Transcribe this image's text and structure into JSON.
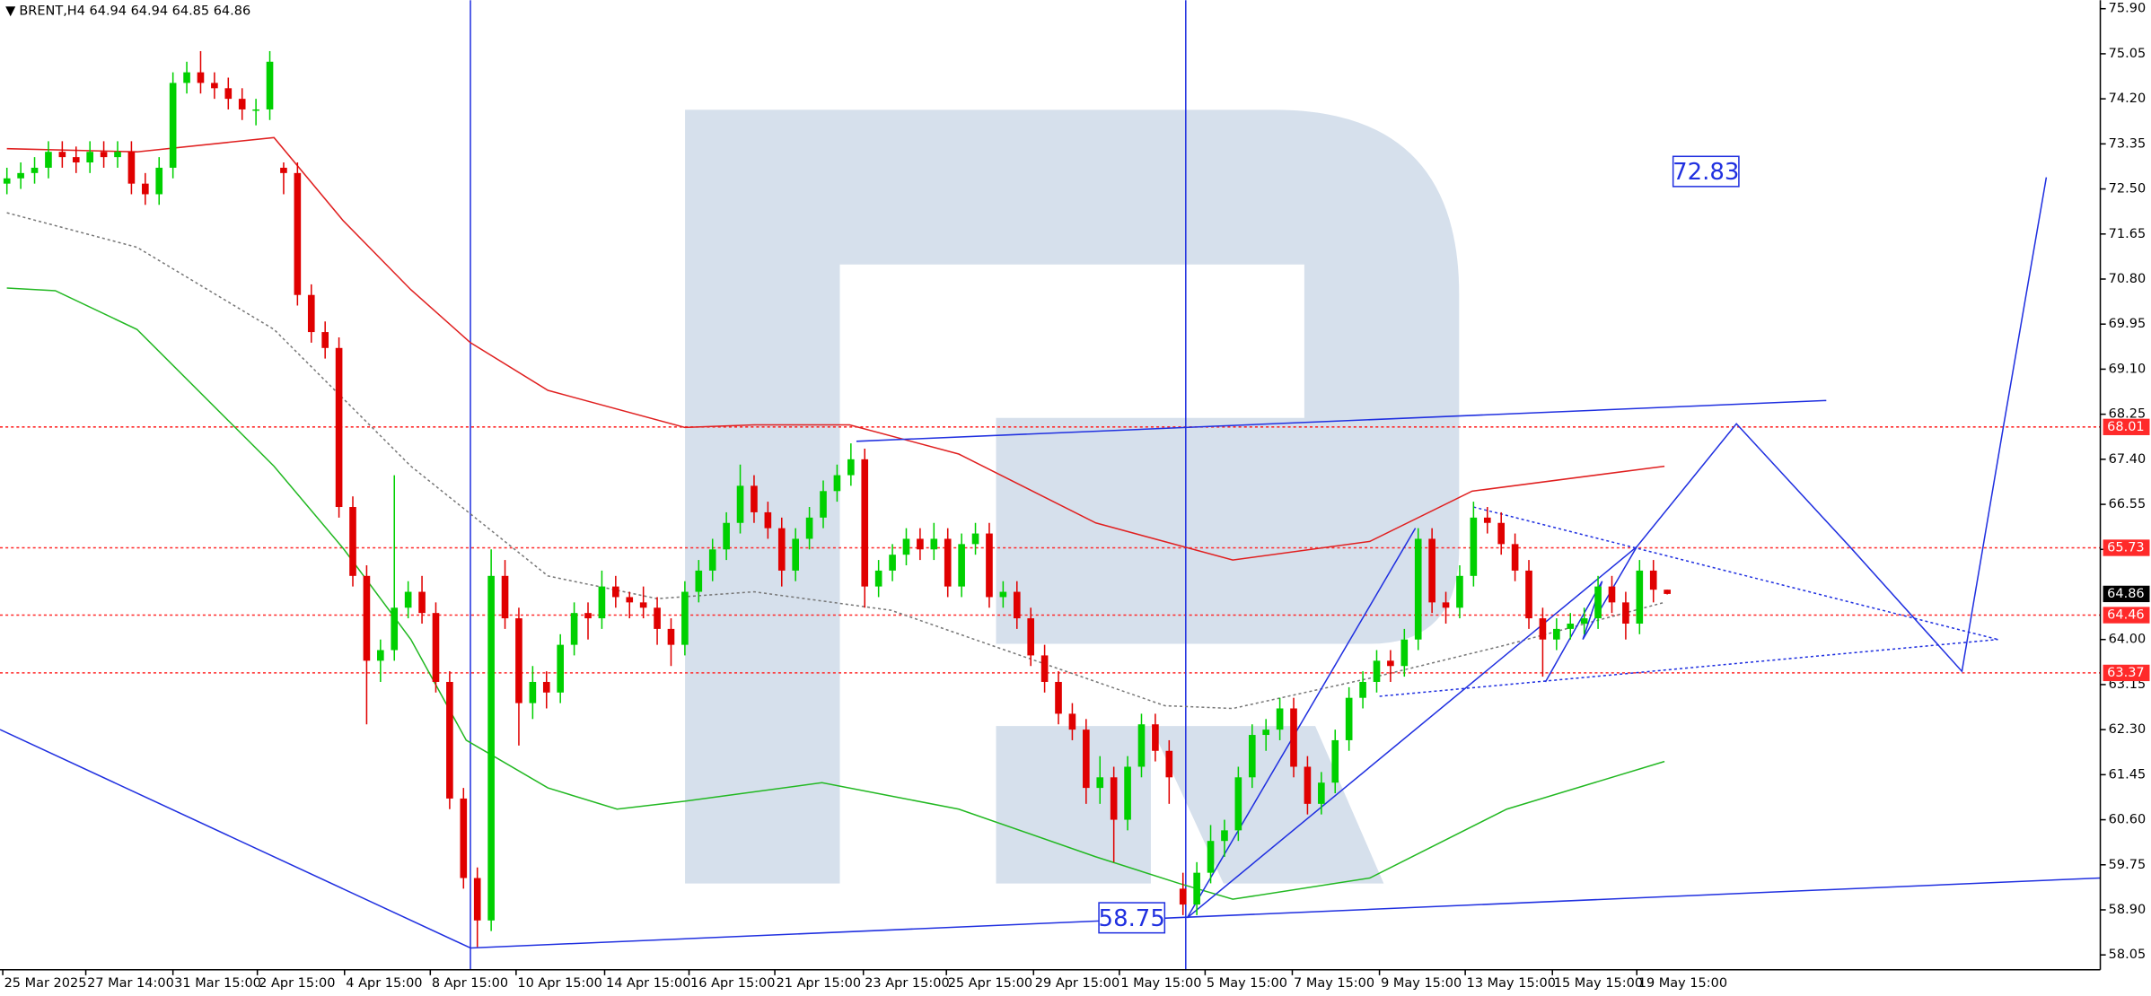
{
  "chart_data": {
    "type": "candlestick",
    "title": "BRENT,H4 64.94 64.94 64.85 64.86",
    "xlim": [
      -0.5,
      151.3
    ],
    "ylim": [
      57.77,
      76.06
    ],
    "xticks": [
      {
        "value": -0.3,
        "label": "25 Mar 2025"
      },
      {
        "value": 5.7,
        "label": "27 Mar 14:00"
      },
      {
        "value": 12,
        "label": "31 Mar 15:00"
      },
      {
        "value": 18.1,
        "label": "2 Apr 15:00"
      },
      {
        "value": 24.4,
        "label": "4 Apr 15:00"
      },
      {
        "value": 30.6,
        "label": "8 Apr 15:00"
      },
      {
        "value": 36.8,
        "label": "10 Apr 15:00"
      },
      {
        "value": 43.2,
        "label": "14 Apr 15:00"
      },
      {
        "value": 49.3,
        "label": "16 Apr 15:00"
      },
      {
        "value": 55.5,
        "label": "21 Apr 15:00"
      },
      {
        "value": 61.9,
        "label": "23 Apr 15:00"
      },
      {
        "value": 67.9,
        "label": "25 Apr 15:00"
      },
      {
        "value": 74.2,
        "label": "29 Apr 15:00"
      },
      {
        "value": 80.4,
        "label": "1 May 15:00"
      },
      {
        "value": 86.6,
        "label": "5 May 15:00"
      },
      {
        "value": 92.9,
        "label": "7 May 15:00"
      },
      {
        "value": 99.2,
        "label": "9 May 15:00"
      },
      {
        "value": 105.4,
        "label": "13 May 15:00"
      },
      {
        "value": 111.7,
        "label": "15 May 15:00"
      },
      {
        "value": 117.8,
        "label": "19 May 15:00"
      }
    ],
    "yticks": [
      {
        "value": 75.9,
        "label": "75.90"
      },
      75.05,
      {
        "value": 74.2,
        "label": "74.20"
      },
      73.35,
      {
        "value": 72.5,
        "label": "72.50"
      },
      71.65,
      {
        "value": 70.8,
        "label": "70.80"
      },
      69.95,
      {
        "value": 69.1,
        "label": "69.10"
      },
      68.25,
      {
        "value": 67.4,
        "label": "67.40"
      },
      66.55,
      {
        "value": 65.7,
        "label": "65.70"
      },
      {
        "value": 64,
        "label": "64.00"
      },
      63.15,
      {
        "value": 62.3,
        "label": "62.30"
      },
      61.45,
      {
        "value": 60.6,
        "label": "60.60"
      },
      59.75,
      {
        "value": 58.9,
        "label": "58.90"
      },
      58.05
    ],
    "up_color": "#00d000",
    "down_color": "#e00000",
    "open": [
      72.6,
      72.7,
      72.8,
      72.9,
      73.2,
      73.1,
      73.0,
      73.2,
      73.1,
      73.2,
      72.6,
      72.4,
      72.9,
      74.5,
      74.7,
      74.5,
      74.4,
      74.2,
      74.0,
      74.0,
      72.9,
      72.8,
      70.5,
      69.8,
      69.5,
      66.5,
      65.2,
      63.6,
      63.8,
      64.6,
      64.9,
      64.5,
      63.2,
      61.0,
      59.5,
      58.7,
      65.2,
      64.4,
      62.8,
      63.2,
      63.0,
      63.9,
      64.5,
      64.4,
      65.0,
      64.8,
      64.7,
      64.6,
      64.2,
      63.9,
      64.9,
      65.3,
      65.7,
      66.2,
      66.9,
      66.4,
      66.1,
      65.3,
      65.9,
      66.3,
      66.8,
      67.1,
      67.4,
      65.0,
      65.3,
      65.6,
      65.9,
      65.7,
      65.9,
      65.0,
      65.8,
      66.0,
      64.8,
      64.9,
      64.4,
      63.7,
      63.2,
      62.6,
      62.3,
      61.2,
      61.4,
      60.6,
      61.6,
      62.4,
      61.9,
      59.3,
      59.0,
      59.6,
      60.2,
      60.4,
      61.4,
      62.2,
      62.3,
      62.7,
      61.6,
      60.9,
      61.3,
      62.1,
      62.9,
      63.2,
      63.6,
      63.5,
      64.0,
      65.9,
      64.7,
      64.6,
      65.2,
      66.3,
      66.2,
      65.8,
      65.3,
      64.4,
      64.0,
      64.2,
      64.3,
      64.4,
      65.0,
      64.7,
      64.3,
      65.3,
      64.94
    ],
    "high": [
      72.9,
      73.0,
      73.1,
      73.4,
      73.4,
      73.3,
      73.4,
      73.4,
      73.4,
      73.4,
      72.8,
      73.1,
      74.7,
      74.9,
      75.1,
      74.7,
      74.6,
      74.4,
      74.2,
      75.1,
      73.0,
      73.0,
      70.7,
      70.0,
      69.7,
      66.7,
      65.4,
      64.0,
      67.1,
      65.1,
      65.2,
      64.7,
      63.4,
      61.2,
      59.7,
      65.7,
      65.5,
      64.6,
      63.5,
      63.4,
      64.1,
      64.7,
      64.7,
      65.3,
      65.2,
      64.9,
      65.0,
      64.8,
      64.4,
      65.1,
      65.5,
      65.9,
      66.4,
      67.3,
      67.1,
      66.6,
      66.3,
      66.1,
      66.5,
      67.0,
      67.3,
      67.7,
      67.6,
      65.5,
      65.8,
      66.1,
      66.1,
      66.2,
      66.1,
      66.0,
      66.2,
      66.2,
      65.1,
      65.1,
      64.6,
      63.9,
      63.4,
      62.8,
      62.5,
      61.8,
      61.6,
      61.8,
      62.6,
      62.6,
      62.1,
      59.6,
      59.8,
      60.5,
      60.6,
      61.6,
      62.4,
      62.5,
      62.9,
      62.9,
      61.8,
      61.5,
      62.3,
      63.1,
      63.4,
      63.8,
      63.8,
      64.2,
      66.1,
      66.1,
      64.9,
      65.4,
      66.6,
      66.5,
      66.4,
      66.0,
      65.5,
      64.6,
      64.4,
      64.5,
      64.6,
      65.2,
      65.2,
      64.9,
      65.5,
      65.5,
      64.94
    ],
    "low": [
      72.4,
      72.5,
      72.6,
      72.7,
      72.9,
      72.8,
      72.8,
      72.9,
      72.9,
      72.4,
      72.2,
      72.2,
      72.7,
      74.3,
      74.3,
      74.2,
      74.0,
      73.8,
      73.7,
      73.8,
      72.4,
      70.3,
      69.6,
      69.3,
      66.3,
      65.0,
      62.4,
      63.2,
      63.6,
      64.4,
      64.3,
      63.0,
      60.8,
      59.3,
      58.2,
      58.5,
      64.2,
      62.0,
      62.5,
      62.7,
      62.8,
      63.7,
      64.0,
      64.2,
      64.6,
      64.4,
      64.4,
      63.9,
      63.5,
      63.7,
      64.7,
      65.1,
      65.5,
      66.0,
      66.2,
      65.9,
      65.0,
      65.1,
      65.7,
      66.1,
      66.6,
      66.9,
      64.6,
      64.8,
      65.1,
      65.4,
      65.5,
      65.5,
      64.8,
      64.8,
      65.6,
      64.6,
      64.6,
      64.2,
      63.5,
      63.0,
      62.4,
      62.1,
      60.9,
      60.9,
      59.8,
      60.4,
      61.4,
      61.7,
      60.9,
      58.8,
      58.8,
      59.4,
      59.9,
      60.2,
      61.2,
      61.9,
      62.1,
      61.4,
      60.7,
      60.7,
      61.1,
      61.9,
      62.7,
      63.0,
      63.2,
      63.3,
      63.8,
      64.5,
      64.3,
      64.4,
      65.0,
      66.0,
      65.6,
      65.1,
      64.2,
      63.3,
      63.8,
      64.0,
      64.1,
      64.2,
      64.5,
      64.0,
      64.1,
      64.7,
      64.85
    ],
    "close": [
      72.7,
      72.8,
      72.9,
      73.2,
      73.1,
      73.0,
      73.2,
      73.1,
      73.2,
      72.6,
      72.4,
      72.9,
      74.5,
      74.7,
      74.5,
      74.4,
      74.2,
      74.0,
      74.0,
      74.9,
      72.8,
      70.5,
      69.8,
      69.5,
      66.5,
      65.2,
      63.6,
      63.8,
      64.6,
      64.9,
      64.5,
      63.2,
      61.0,
      59.5,
      58.7,
      65.2,
      64.4,
      62.8,
      63.2,
      63.0,
      63.9,
      64.5,
      64.4,
      65.0,
      64.8,
      64.7,
      64.6,
      64.2,
      63.9,
      64.9,
      65.3,
      65.7,
      66.2,
      66.9,
      66.4,
      66.1,
      65.3,
      65.9,
      66.3,
      66.8,
      67.1,
      67.4,
      65.0,
      65.3,
      65.6,
      65.9,
      65.7,
      65.9,
      65.0,
      65.8,
      66.0,
      64.8,
      64.9,
      64.4,
      63.7,
      63.2,
      62.6,
      62.3,
      61.2,
      61.4,
      60.6,
      61.6,
      62.4,
      61.9,
      61.4,
      59.0,
      59.6,
      60.2,
      60.4,
      61.4,
      62.2,
      62.3,
      62.7,
      61.6,
      60.9,
      61.3,
      62.1,
      62.9,
      63.2,
      63.6,
      63.5,
      64.0,
      65.9,
      64.7,
      64.6,
      65.2,
      66.3,
      66.2,
      65.8,
      65.3,
      64.4,
      64.0,
      64.2,
      64.3,
      64.4,
      65.0,
      64.7,
      64.3,
      65.3,
      64.94,
      64.86
    ],
    "lines": [
      {
        "color": "#e02020",
        "dash": false,
        "x": [
          0,
          9.4,
          19.3,
          24.3,
          29.2,
          33.5,
          39.1,
          49,
          54,
          60.9,
          68.8,
          78.7,
          88.6,
          98.5,
          105.9,
          119.8
        ],
        "values": [
          73.26,
          73.2,
          73.47,
          71.9,
          70.6,
          69.6,
          68.7,
          68.0,
          68.05,
          68.05,
          67.5,
          66.2,
          65.5,
          65.85,
          66.8,
          67.27
        ]
      },
      {
        "color": "#22b822",
        "dash": false,
        "x": [
          0,
          3.5,
          9.4,
          19.3,
          24.3,
          29.2,
          33.2,
          39.1,
          44.1,
          49,
          58.9,
          68.8,
          78.7,
          84.7,
          88.6,
          98.5,
          108.4,
          119.8
        ],
        "values": [
          70.63,
          70.58,
          69.85,
          67.27,
          65.72,
          64.0,
          62.1,
          61.2,
          60.8,
          60.95,
          61.3,
          60.8,
          59.9,
          59.4,
          59.1,
          59.5,
          60.8,
          61.7
        ]
      },
      {
        "color": "#777777",
        "dash": true,
        "x": [
          0,
          9.4,
          19.3,
          29.2,
          39.1,
          47,
          54,
          63.9,
          73.8,
          83.7,
          88.6,
          98.5,
          108.4,
          119.8
        ],
        "values": [
          72.05,
          71.4,
          69.85,
          67.27,
          65.2,
          64.77,
          64.9,
          64.55,
          63.65,
          62.75,
          62.7,
          63.27,
          63.9,
          64.7
        ]
      },
      {
        "color": "#2030e0",
        "dash": false,
        "x": [
          -0.5,
          33.5
        ],
        "values": [
          62.3,
          58.18
        ]
      },
      {
        "color": "#2030e0",
        "dash": false,
        "x": [
          33.5,
          151.3
        ],
        "values": [
          58.18,
          59.5
        ]
      },
      {
        "color": "#2030e0",
        "dash": false,
        "x": [
          61.4,
          131.5
        ],
        "values": [
          67.74,
          68.51
        ]
      },
      {
        "color": "#2030e0",
        "dash": false,
        "x": [
          85.3,
          101.8
        ],
        "values": [
          58.75,
          66.1
        ]
      },
      {
        "color": "#2030e0",
        "dash": false,
        "x": [
          85.3,
          117.8
        ],
        "values": [
          58.75,
          65.75
        ]
      },
      {
        "color": "#2030e0",
        "dash": false,
        "x": [
          111.2,
          115.3,
          113.9,
          117.8,
          125.0,
          133.2,
          141.3,
          144.3,
          147.4
        ],
        "values": [
          63.2,
          65.1,
          64.0,
          65.75,
          68.07,
          65.75,
          63.4,
          68.02,
          72.72
        ]
      },
      {
        "color": "#2030e0",
        "dash": true,
        "x": [
          106.0,
          143.9
        ],
        "values": [
          66.5,
          64.0
        ]
      },
      {
        "color": "#2030e0",
        "dash": true,
        "x": [
          99.2,
          143.9
        ],
        "values": [
          62.93,
          64.0
        ]
      }
    ],
    "vlines": [
      33.5,
      85.2
    ],
    "vline_color": "#2030e0",
    "levels": [
      {
        "value": 68.01,
        "color": "#ff2a2a"
      },
      {
        "value": 65.73,
        "color": "#ff2a2a"
      },
      {
        "value": 64.46,
        "color": "#ff2a2a"
      },
      {
        "value": 63.37,
        "color": "#ff2a2a"
      }
    ],
    "annotations": [
      {
        "value": 72.83,
        "x": 122.8
      },
      {
        "value": 58.75,
        "x": 81.3
      }
    ]
  }
}
